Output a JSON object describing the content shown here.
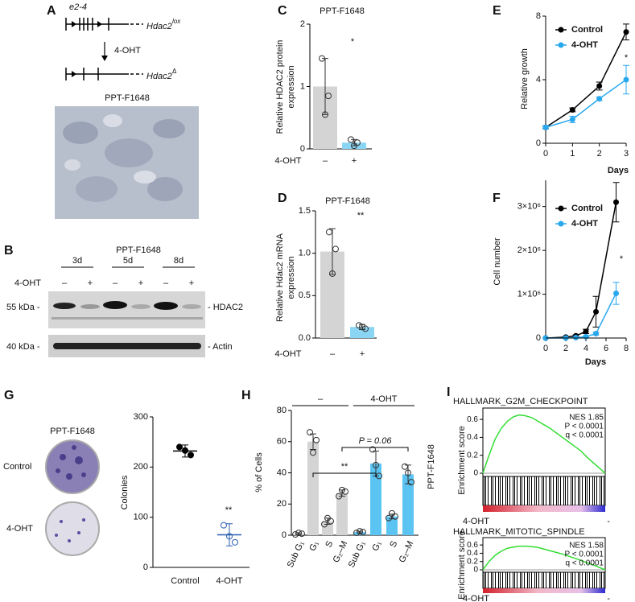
{
  "figure": {
    "panel_a": {
      "label": "A",
      "exons": "e2-4",
      "gene": "Hdac2",
      "lox": "lox",
      "treatment": "4-OHT",
      "deleted": "Δ",
      "cell_line": "PPT-F1648"
    },
    "panel_b": {
      "label": "B",
      "cell_line": "PPT-F1648",
      "timepoints": [
        "3d",
        "5d",
        "8d"
      ],
      "treatment": "4-OHT",
      "signs": [
        "–",
        "+",
        "–",
        "+",
        "–",
        "+"
      ],
      "markers": [
        "55 kDa -",
        "40 kDa -"
      ],
      "proteins": [
        "- HDAC2",
        "- Actin"
      ]
    },
    "panel_g": {
      "label": "G",
      "cell_line": "PPT-F1648",
      "conditions": [
        "Control",
        "4-OHT"
      ]
    }
  },
  "chart_data": [
    {
      "type": "bar",
      "label": "C",
      "title": "PPT-F1648",
      "ylabel": [
        "Relative HDAC2 protein",
        "expression"
      ],
      "xlabel": "4-OHT",
      "categories": [
        "–",
        "+"
      ],
      "values": [
        1,
        0.1
      ],
      "errors": [
        0.45,
        0.05
      ],
      "points": [
        [
          1.45,
          0.85,
          0.55
        ],
        [
          0.15,
          0.1,
          0.05
        ]
      ],
      "colors": [
        "#d4d4d4",
        "#8ad4f4"
      ],
      "ylim": [
        0,
        2
      ],
      "yticks": [
        0,
        1,
        2
      ],
      "annotation": "*"
    },
    {
      "type": "bar",
      "label": "D",
      "title": "PPT-F1648",
      "ylabel": [
        "Relative Hdac2 mRNA",
        "expression"
      ],
      "xlabel": "4-OHT",
      "categories": [
        "–",
        "+"
      ],
      "values": [
        1.02,
        0.13
      ],
      "errors": [
        0.27,
        0.03
      ],
      "points": [
        [
          1.25,
          1.05,
          0.76
        ],
        [
          0.15,
          0.11,
          0.13
        ]
      ],
      "colors": [
        "#d4d4d4",
        "#8ad4f4"
      ],
      "ylim": [
        0,
        1.5
      ],
      "yticks": [
        {
          "value": 0,
          "label": "0.0"
        },
        0.5,
        {
          "value": 1,
          "label": "1.0"
        },
        1.5
      ],
      "annotation": "**"
    },
    {
      "type": "line",
      "label": "E",
      "ylabel": "Relative growth",
      "xlabel": "Days",
      "x": [
        0,
        1,
        2,
        3
      ],
      "series": [
        {
          "name": "Control",
          "color": "#000000",
          "values": [
            1,
            2.1,
            3.6,
            7
          ],
          "errors": [
            0.1,
            0.12,
            0.25,
            0.5
          ]
        },
        {
          "name": "4-OHT",
          "color": "#29a8ee",
          "values": [
            1,
            1.5,
            2.8,
            4
          ],
          "errors": [
            0.1,
            0.2,
            0.12,
            0.9
          ]
        }
      ],
      "xlim": [
        0,
        3
      ],
      "xticks": [
        0,
        1,
        2,
        3
      ],
      "ylim": [
        0,
        8
      ],
      "yticks": [
        0,
        4,
        8
      ],
      "annotation": "*"
    },
    {
      "type": "line",
      "label": "F",
      "ylabel": "Cell number",
      "xlabel": "Days",
      "x": [
        0,
        2,
        3,
        4,
        5,
        7
      ],
      "series": [
        {
          "name": "Control",
          "color": "#000000",
          "values": [
            0,
            20000,
            50000,
            150000,
            600000,
            3100000
          ],
          "errors": [
            0,
            10000,
            20000,
            50000,
            350000,
            450000
          ]
        },
        {
          "name": "4-OHT",
          "color": "#29a8ee",
          "values": [
            0,
            0,
            10000,
            30000,
            100000,
            1020000
          ],
          "errors": [
            0,
            0,
            5000,
            10000,
            30000,
            250000
          ]
        }
      ],
      "xlim": [
        0,
        8
      ],
      "xticks": [
        0,
        2,
        4,
        6,
        8
      ],
      "ylim": [
        0,
        3600000
      ],
      "yticks": [
        0,
        {
          "value": 1000000,
          "label": "1×10⁶"
        },
        {
          "value": 2000000,
          "label": "2×10⁶"
        },
        {
          "value": 3000000,
          "label": "3×10⁶"
        }
      ],
      "annotation": "*"
    },
    {
      "type": "dot",
      "ylabel": "Colonies",
      "categories": [
        "Control",
        "4-OHT"
      ],
      "values": [
        232,
        65
      ],
      "errors": [
        12,
        22
      ],
      "points": [
        [
          240,
          224,
          233
        ],
        [
          84,
          50,
          62
        ]
      ],
      "colors": [
        "#000000",
        "#2a5db0"
      ],
      "ylim": [
        0,
        300
      ],
      "yticks": [
        0,
        100,
        200,
        300
      ],
      "annotation": "**"
    },
    {
      "type": "bar",
      "label": "H",
      "ylabel": "% of Cells",
      "side_label": "PPT-F1648",
      "categories": [
        "Sub G₁",
        "G₁",
        "S",
        "G₂–M"
      ],
      "series": [
        {
          "name": "–",
          "color": "#d4d4d4",
          "values": [
            1,
            60,
            9,
            27
          ],
          "errors": [
            0.5,
            5,
            2,
            2
          ],
          "points": [
            [
              0.5,
              1,
              1.5
            ],
            [
              66,
              61,
              53
            ],
            [
              7,
              9,
              11
            ],
            [
              25,
              28,
              29
            ]
          ]
        },
        {
          "name": "4-OHT",
          "color": "#5cc4f2",
          "values": [
            2,
            46,
            12,
            39
          ],
          "errors": [
            0.5,
            8,
            1.5,
            6
          ],
          "points": [
            [
              1.5,
              2,
              2.5
            ],
            [
              55,
              38,
              45
            ],
            [
              11,
              12,
              14
            ],
            [
              44,
              34,
              40
            ]
          ]
        }
      ],
      "ylim": [
        0,
        80
      ],
      "yticks": [
        0,
        20,
        40,
        60,
        80
      ],
      "annotations": [
        "**",
        "P = 0.06"
      ]
    },
    {
      "type": "line",
      "label": "I",
      "title": "HALLMARK_G2M_CHECKPOINT",
      "ylabel": "Enrichment score",
      "color": "#33dd33",
      "values": [
        0,
        0.2,
        0.38,
        0.5,
        0.58,
        0.63,
        0.65,
        0.64,
        0.62,
        0.58,
        0.54,
        0.5,
        0.45,
        0.4,
        0.35,
        0.3,
        0.25,
        0.18,
        0.12,
        0.06,
        0
      ],
      "ylim": [
        0,
        0.7
      ],
      "yticks": [
        0,
        0.2,
        0.4,
        0.6
      ],
      "annotations": [
        "NES 1.85",
        "P < 0.0001",
        "q < 0.0001"
      ],
      "end_labels": [
        "4-OHT",
        "-"
      ]
    },
    {
      "type": "line",
      "title": "HALLMARK_MITOTIC_SPINDLE",
      "ylabel": "Enrichment score",
      "color": "#33dd33",
      "values": [
        0,
        0.2,
        0.35,
        0.45,
        0.52,
        0.55,
        0.57,
        0.57,
        0.56,
        0.54,
        0.5,
        0.46,
        0.42,
        0.38,
        0.33,
        0.28,
        0.23,
        0.17,
        0.12,
        0.06,
        0
      ],
      "ylim": [
        0,
        0.7
      ],
      "yticks": [
        0,
        0.2,
        0.4,
        0.6
      ],
      "annotations": [
        "NES 1.58",
        "P < 0.0001",
        "q < 0.0001"
      ],
      "end_labels": [
        "4-OHT",
        "-"
      ]
    }
  ]
}
